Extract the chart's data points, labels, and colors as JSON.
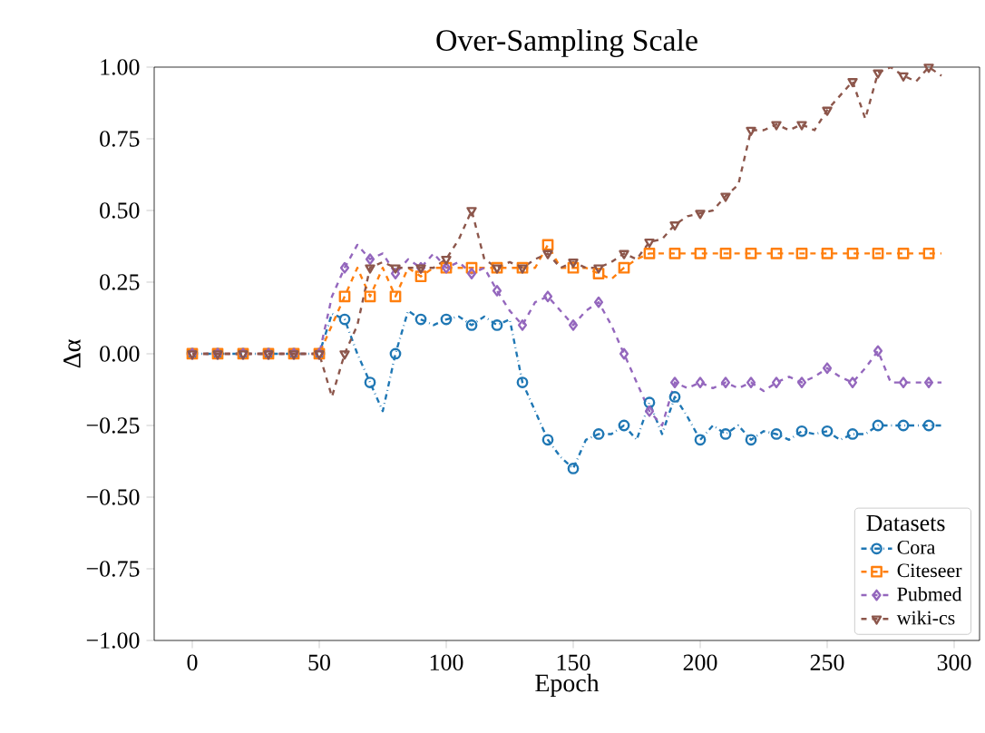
{
  "chart_data": {
    "type": "line",
    "title": "Over-Sampling Scale",
    "xlabel": "Epoch",
    "ylabel": "Δα",
    "legend_title": "Datasets",
    "legend": "bottom right",
    "xlim": [
      -15,
      310
    ],
    "ylim": [
      -1,
      1
    ],
    "xticks": [
      0,
      50,
      100,
      150,
      200,
      250,
      300
    ],
    "yticks": [
      {
        "value": -1,
        "label": "−1.00"
      },
      {
        "value": -0.75,
        "label": "−0.75"
      },
      {
        "value": -0.5,
        "label": "−0.50"
      },
      {
        "value": -0.25,
        "label": "−0.25"
      },
      {
        "value": 0,
        "label": "0.00"
      },
      {
        "value": 0.25,
        "label": "0.25"
      },
      {
        "value": 0.5,
        "label": "0.50"
      },
      {
        "value": 0.75,
        "label": "0.75"
      },
      {
        "value": 1,
        "label": "1.00"
      }
    ],
    "x": [
      0,
      5,
      10,
      15,
      20,
      25,
      30,
      35,
      40,
      45,
      50,
      55,
      60,
      65,
      70,
      75,
      80,
      85,
      90,
      95,
      100,
      105,
      110,
      115,
      120,
      125,
      130,
      135,
      140,
      145,
      150,
      155,
      160,
      165,
      170,
      175,
      180,
      185,
      190,
      195,
      200,
      205,
      210,
      215,
      220,
      225,
      230,
      235,
      240,
      245,
      250,
      255,
      260,
      265,
      270,
      275,
      280,
      285,
      290,
      295
    ],
    "series": [
      {
        "name": "Cora",
        "color": "#1f77b4",
        "marker": "circle",
        "line_style": "dashdot",
        "values": [
          0,
          0,
          0,
          0,
          0,
          0,
          0,
          0,
          0,
          0,
          0,
          0.14,
          0.12,
          0.0,
          -0.1,
          -0.2,
          0.0,
          0.15,
          0.12,
          0.1,
          0.12,
          0.13,
          0.1,
          0.13,
          0.1,
          0.12,
          -0.1,
          -0.2,
          -0.3,
          -0.36,
          -0.4,
          -0.3,
          -0.28,
          -0.28,
          -0.25,
          -0.3,
          -0.17,
          -0.28,
          -0.15,
          -0.22,
          -0.3,
          -0.25,
          -0.28,
          -0.25,
          -0.3,
          -0.27,
          -0.28,
          -0.3,
          -0.27,
          -0.28,
          -0.27,
          -0.3,
          -0.28,
          -0.28,
          -0.25,
          -0.25,
          -0.25,
          -0.25,
          -0.25,
          -0.25
        ]
      },
      {
        "name": "Citeseer",
        "color": "#ff7f0e",
        "marker": "square",
        "line_style": "dashed",
        "values": [
          0,
          0,
          0,
          0,
          0,
          0,
          0,
          0,
          0,
          0,
          0,
          0.1,
          0.2,
          0.3,
          0.2,
          0.3,
          0.2,
          0.3,
          0.27,
          0.3,
          0.3,
          0.3,
          0.3,
          0.3,
          0.3,
          0.3,
          0.3,
          0.3,
          0.38,
          0.3,
          0.3,
          0.3,
          0.28,
          0.26,
          0.3,
          0.33,
          0.35,
          0.35,
          0.35,
          0.35,
          0.35,
          0.35,
          0.35,
          0.35,
          0.35,
          0.35,
          0.35,
          0.35,
          0.35,
          0.35,
          0.35,
          0.35,
          0.35,
          0.35,
          0.35,
          0.35,
          0.35,
          0.35,
          0.35,
          0.35
        ]
      },
      {
        "name": "Pubmed",
        "color": "#9467bd",
        "marker": "diamond",
        "line_style": "dashed",
        "values": [
          0,
          0,
          0,
          0,
          0,
          0,
          0,
          0,
          0,
          0,
          0,
          0.2,
          0.3,
          0.38,
          0.33,
          0.35,
          0.28,
          0.33,
          0.3,
          0.35,
          0.3,
          0.32,
          0.28,
          0.3,
          0.22,
          0.15,
          0.1,
          0.18,
          0.2,
          0.15,
          0.1,
          0.15,
          0.18,
          0.1,
          0.0,
          -0.1,
          -0.2,
          -0.25,
          -0.1,
          -0.12,
          -0.1,
          -0.12,
          -0.1,
          -0.12,
          -0.1,
          -0.13,
          -0.1,
          -0.08,
          -0.1,
          -0.08,
          -0.05,
          -0.08,
          -0.1,
          -0.05,
          0.01,
          -0.1,
          -0.1,
          -0.1,
          -0.1,
          -0.1
        ]
      },
      {
        "name": "wiki-cs",
        "color": "#8c564b",
        "marker": "triangle",
        "line_style": "dashed",
        "values": [
          0,
          0,
          0,
          0,
          0,
          0,
          0,
          0,
          0,
          0,
          0,
          -0.15,
          0.0,
          0.1,
          0.3,
          0.32,
          0.3,
          0.3,
          0.3,
          0.3,
          0.33,
          0.4,
          0.5,
          0.33,
          0.3,
          0.32,
          0.3,
          0.33,
          0.35,
          0.3,
          0.32,
          0.3,
          0.3,
          0.32,
          0.35,
          0.33,
          0.39,
          0.4,
          0.45,
          0.48,
          0.49,
          0.5,
          0.55,
          0.59,
          0.78,
          0.78,
          0.8,
          0.78,
          0.8,
          0.78,
          0.85,
          0.9,
          0.95,
          0.82,
          0.98,
          1.0,
          0.97,
          0.95,
          1.0,
          0.97
        ]
      }
    ]
  }
}
